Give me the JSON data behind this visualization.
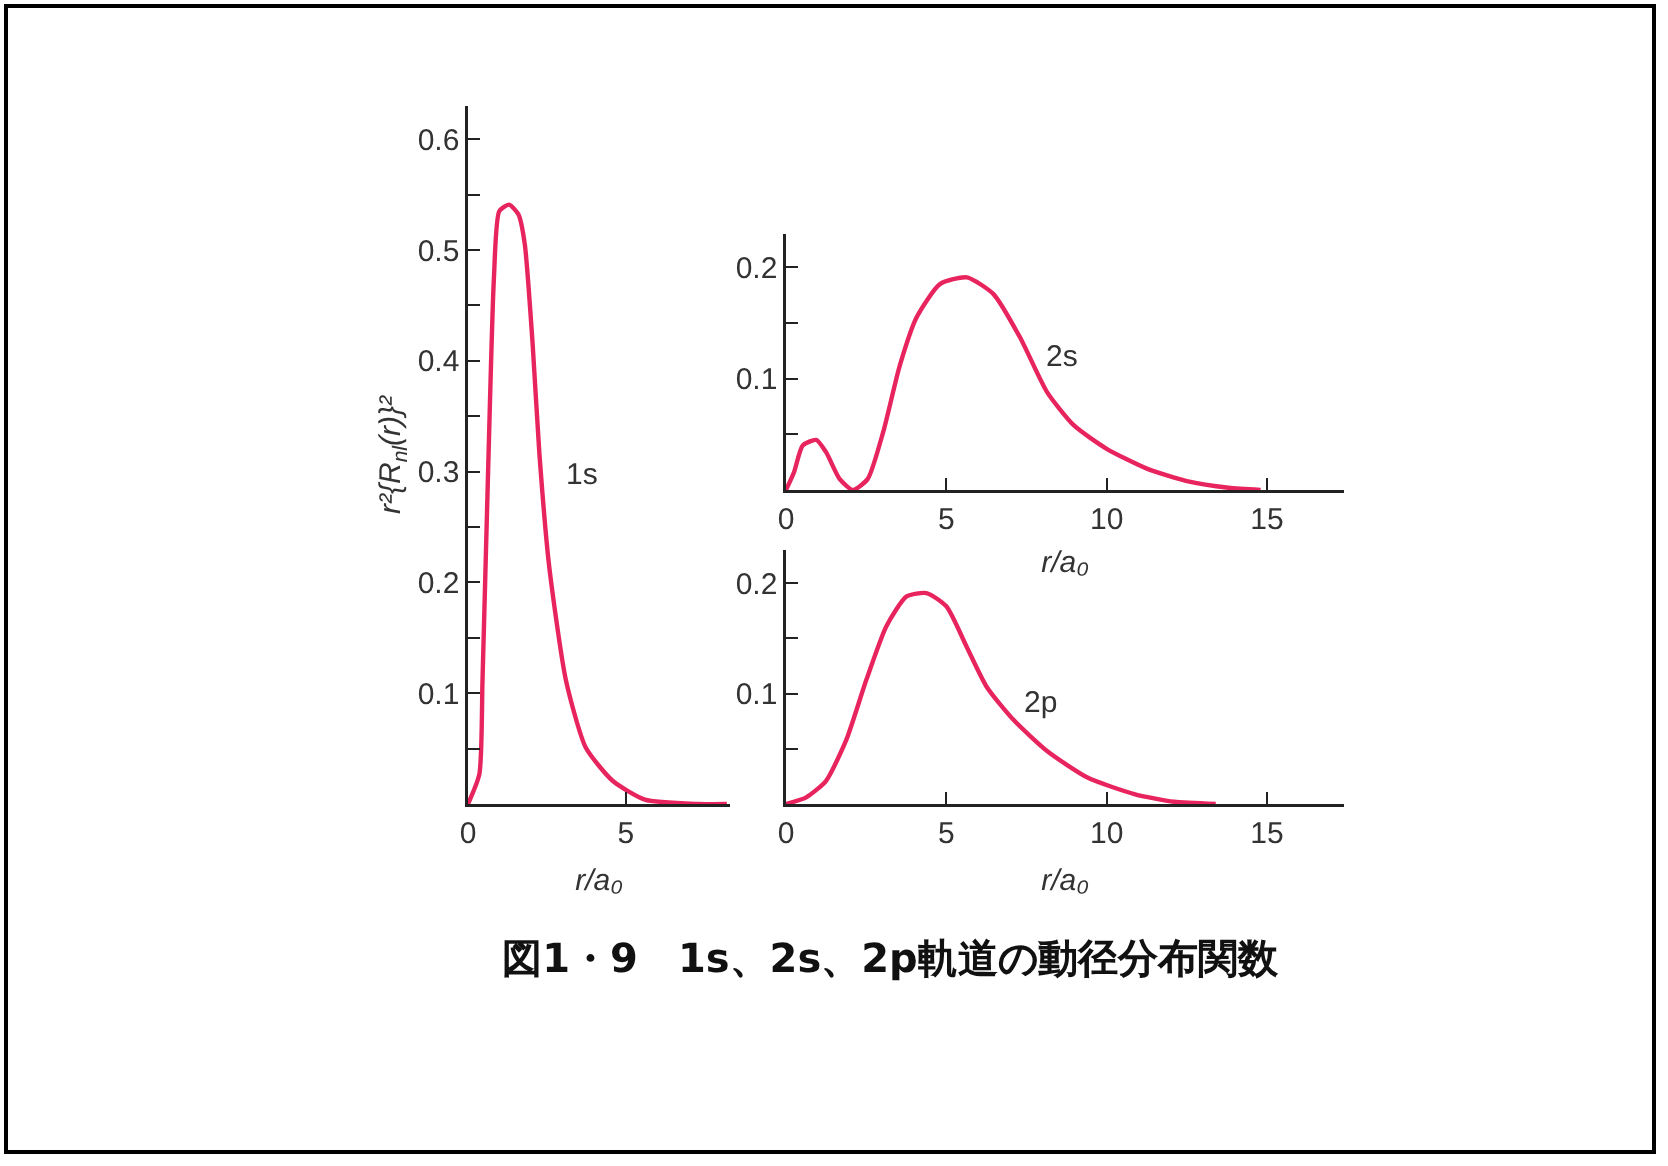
{
  "chart_data": [
    {
      "type": "line",
      "xlabel": "r/a₀",
      "ylabel": "r²{R$_{nl}$(r)}²",
      "annotations": [
        "図1・9　1s、2s、2p軌道の動径分布関数"
      ],
      "xlim": [
        0,
        8.3
      ],
      "xticks": [
        0,
        5
      ],
      "ylim": [
        0,
        0.63
      ],
      "yticks": [
        {
          "value": 0.05,
          "label": null
        },
        0.1,
        {
          "value": 0.15,
          "label": null
        },
        0.2,
        {
          "value": 0.25,
          "label": null
        },
        0.3,
        {
          "value": 0.35,
          "label": null
        },
        0.4,
        {
          "value": 0.45,
          "label": null
        },
        0.5,
        {
          "value": 0.55,
          "label": null
        },
        0.6
      ],
      "series": [
        {
          "name": "1s",
          "color": "#e8245e",
          "x": [
            0,
            0.36,
            0.46,
            0.63,
            0.82,
            0.99,
            1.3,
            1.6,
            1.8,
            2.05,
            2.26,
            2.57,
            3.1,
            3.73,
            4.58,
            5.6,
            7.3,
            8.2
          ],
          "values": [
            0,
            0.027,
            0.112,
            0.293,
            0.474,
            0.535,
            0.541,
            0.532,
            0.505,
            0.414,
            0.317,
            0.215,
            0.112,
            0.051,
            0.021,
            0.004,
            0,
            0
          ]
        }
      ]
    },
    {
      "type": "line",
      "xlabel": "r/a₀",
      "xlim": [
        0,
        17.4
      ],
      "xticks": [
        0,
        5,
        10,
        15
      ],
      "ylim": [
        0,
        0.23
      ],
      "yticks": [
        {
          "value": 0.05,
          "label": null
        },
        0.1,
        {
          "value": 0.15,
          "label": null
        },
        0.2
      ],
      "series": [
        {
          "name": "2s",
          "color": "#e8245e",
          "x": [
            0,
            0.25,
            0.52,
            0.94,
            1.25,
            1.67,
            2.09,
            2.55,
            3.03,
            3.55,
            4.07,
            4.8,
            5.64,
            6.47,
            7.3,
            8.14,
            8.98,
            10.0,
            11.27,
            12.5,
            13.8,
            14.8
          ],
          "values": [
            0,
            0.016,
            0.04,
            0.045,
            0.034,
            0.01,
            0,
            0.01,
            0.052,
            0.112,
            0.155,
            0.185,
            0.191,
            0.176,
            0.137,
            0.088,
            0.058,
            0.037,
            0.019,
            0.008,
            0.002,
            0
          ]
        }
      ]
    },
    {
      "type": "line",
      "xlabel": "r/a₀",
      "xlim": [
        0,
        17.4
      ],
      "xticks": [
        0,
        5,
        10,
        15
      ],
      "ylim": [
        0,
        0.23
      ],
      "yticks": [
        {
          "value": 0.05,
          "label": null
        },
        0.1,
        {
          "value": 0.15,
          "label": null
        },
        0.2
      ],
      "series": [
        {
          "name": "2p",
          "color": "#e8245e",
          "x": [
            0,
            0.63,
            1.25,
            1.88,
            2.5,
            3.13,
            3.76,
            4.38,
            5.0,
            5.64,
            6.26,
            7.1,
            8.14,
            9.4,
            10.86,
            12.1,
            13.4
          ],
          "values": [
            0,
            0.006,
            0.021,
            0.058,
            0.112,
            0.161,
            0.188,
            0.191,
            0.179,
            0.142,
            0.106,
            0.076,
            0.048,
            0.024,
            0.009,
            0.002,
            0
          ]
        }
      ]
    }
  ]
}
